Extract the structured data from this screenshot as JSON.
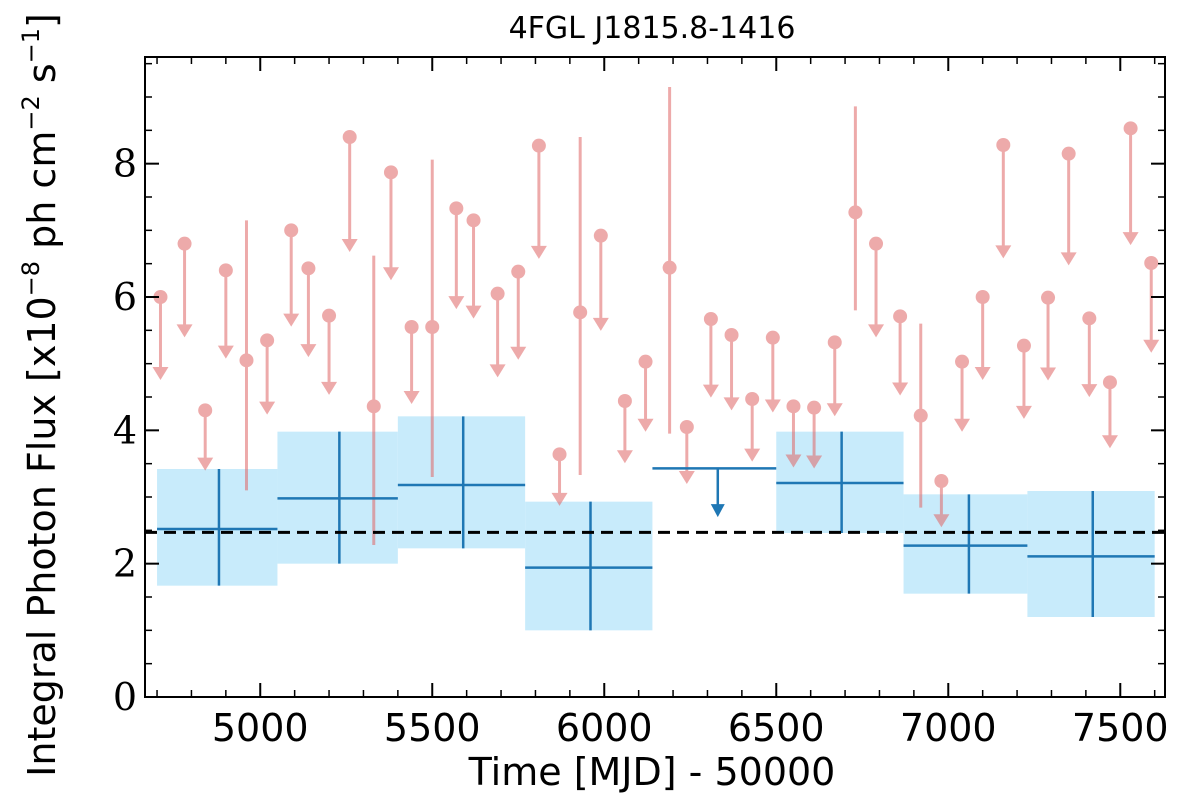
{
  "chart_data": {
    "type": "scatter",
    "title": "4FGL J1815.8-1416",
    "xlabel": "Time [MJD] - 50000",
    "ylabel": "Integral Photon Flux [x10",
    "ylabel_exp": "−8",
    "ylabel_mid": " ph cm",
    "ylabel_exp2": "−2",
    "ylabel_end": " s",
    "ylabel_exp3": "−1",
    "ylabel_close": "]",
    "xlim": [
      4665,
      7630
    ],
    "ylim": [
      0,
      9.6
    ],
    "xticks": [
      5000,
      5500,
      6000,
      6500,
      7000,
      7500
    ],
    "yticks": [
      0,
      2,
      4,
      6,
      8
    ],
    "grid": false,
    "colors": {
      "fine_bins": "#e06666",
      "coarse_bins": "#1f77b4",
      "coarse_band": "#c8ebfb",
      "mean_line": "#000000"
    },
    "mean_flux": 2.47,
    "coarse_bins": [
      {
        "x": 4880,
        "x_lo": 4700,
        "x_hi": 5050,
        "y": 2.52,
        "y_lo": 1.67,
        "y_hi": 3.42,
        "upper_limit": false
      },
      {
        "x": 5230,
        "x_lo": 5050,
        "x_hi": 5400,
        "y": 2.98,
        "y_lo": 2.0,
        "y_hi": 3.98,
        "upper_limit": false
      },
      {
        "x": 5590,
        "x_lo": 5400,
        "x_hi": 5770,
        "y": 3.18,
        "y_lo": 2.23,
        "y_hi": 4.21,
        "upper_limit": false
      },
      {
        "x": 5960,
        "x_lo": 5770,
        "x_hi": 6140,
        "y": 1.94,
        "y_lo": 1.0,
        "y_hi": 2.93,
        "upper_limit": false
      },
      {
        "x": 6330,
        "x_lo": 6140,
        "x_hi": 6500,
        "y": 3.43,
        "upper_limit": true
      },
      {
        "x": 6690,
        "x_lo": 6500,
        "x_hi": 6870,
        "y": 3.21,
        "y_lo": 2.46,
        "y_hi": 3.98,
        "upper_limit": false
      },
      {
        "x": 7060,
        "x_lo": 6870,
        "x_hi": 7230,
        "y": 2.27,
        "y_lo": 1.55,
        "y_hi": 3.04,
        "upper_limit": false
      },
      {
        "x": 7420,
        "x_lo": 7230,
        "x_hi": 7600,
        "y": 2.11,
        "y_lo": 1.2,
        "y_hi": 3.09,
        "upper_limit": false
      }
    ],
    "fine_bins": [
      {
        "x": 4710,
        "y": 6.0,
        "upper_limit": true
      },
      {
        "x": 4780,
        "y": 6.8,
        "upper_limit": true
      },
      {
        "x": 4840,
        "y": 4.3,
        "upper_limit": true
      },
      {
        "x": 4900,
        "y": 6.4,
        "upper_limit": true
      },
      {
        "x": 4960,
        "y": 5.05,
        "y_lo": 3.1,
        "y_hi": 7.15,
        "upper_limit": false
      },
      {
        "x": 5020,
        "y": 5.35,
        "upper_limit": true
      },
      {
        "x": 5090,
        "y": 7.0,
        "upper_limit": true
      },
      {
        "x": 5140,
        "y": 6.43,
        "upper_limit": true
      },
      {
        "x": 5200,
        "y": 5.72,
        "upper_limit": true
      },
      {
        "x": 5260,
        "y": 8.4,
        "upper_limit": true
      },
      {
        "x": 5330,
        "y": 4.36,
        "y_lo": 2.28,
        "y_hi": 6.62,
        "upper_limit": false
      },
      {
        "x": 5380,
        "y": 7.87,
        "upper_limit": true
      },
      {
        "x": 5440,
        "y": 5.55,
        "upper_limit": true
      },
      {
        "x": 5500,
        "y": 5.55,
        "y_lo": 3.3,
        "y_hi": 8.06,
        "upper_limit": false
      },
      {
        "x": 5570,
        "y": 7.33,
        "upper_limit": true
      },
      {
        "x": 5620,
        "y": 7.15,
        "upper_limit": true
      },
      {
        "x": 5690,
        "y": 6.05,
        "upper_limit": true
      },
      {
        "x": 5750,
        "y": 6.38,
        "upper_limit": true
      },
      {
        "x": 5810,
        "y": 8.27,
        "upper_limit": true
      },
      {
        "x": 5870,
        "y": 3.64,
        "upper_limit": true
      },
      {
        "x": 5930,
        "y": 5.77,
        "y_lo": 3.33,
        "y_hi": 8.4,
        "upper_limit": false
      },
      {
        "x": 5990,
        "y": 6.92,
        "upper_limit": true
      },
      {
        "x": 6060,
        "y": 4.44,
        "upper_limit": true
      },
      {
        "x": 6120,
        "y": 5.03,
        "upper_limit": true
      },
      {
        "x": 6190,
        "y": 6.44,
        "y_lo": 3.95,
        "y_hi": 9.15,
        "upper_limit": false
      },
      {
        "x": 6240,
        "y": 4.05,
        "upper_limit": true
      },
      {
        "x": 6310,
        "y": 5.67,
        "upper_limit": true
      },
      {
        "x": 6370,
        "y": 5.43,
        "upper_limit": true
      },
      {
        "x": 6430,
        "y": 4.47,
        "upper_limit": true
      },
      {
        "x": 6490,
        "y": 5.39,
        "upper_limit": true
      },
      {
        "x": 6550,
        "y": 4.36,
        "upper_limit": true
      },
      {
        "x": 6610,
        "y": 4.34,
        "upper_limit": true
      },
      {
        "x": 6670,
        "y": 5.32,
        "upper_limit": true
      },
      {
        "x": 6730,
        "y": 7.27,
        "y_lo": 5.8,
        "y_hi": 8.86,
        "upper_limit": false
      },
      {
        "x": 6790,
        "y": 6.8,
        "upper_limit": true
      },
      {
        "x": 6860,
        "y": 5.71,
        "upper_limit": true
      },
      {
        "x": 6920,
        "y": 4.22,
        "y_lo": 2.84,
        "y_hi": 5.6,
        "upper_limit": false
      },
      {
        "x": 6980,
        "y": 3.24,
        "upper_limit": true
      },
      {
        "x": 7040,
        "y": 5.03,
        "upper_limit": true
      },
      {
        "x": 7100,
        "y": 6.0,
        "upper_limit": true
      },
      {
        "x": 7160,
        "y": 8.28,
        "upper_limit": true
      },
      {
        "x": 7220,
        "y": 5.27,
        "upper_limit": true
      },
      {
        "x": 7290,
        "y": 5.99,
        "upper_limit": true
      },
      {
        "x": 7350,
        "y": 8.15,
        "upper_limit": true
      },
      {
        "x": 7410,
        "y": 5.68,
        "upper_limit": true
      },
      {
        "x": 7470,
        "y": 4.72,
        "upper_limit": true
      },
      {
        "x": 7530,
        "y": 8.53,
        "upper_limit": true
      },
      {
        "x": 7590,
        "y": 6.51,
        "upper_limit": true
      }
    ]
  }
}
